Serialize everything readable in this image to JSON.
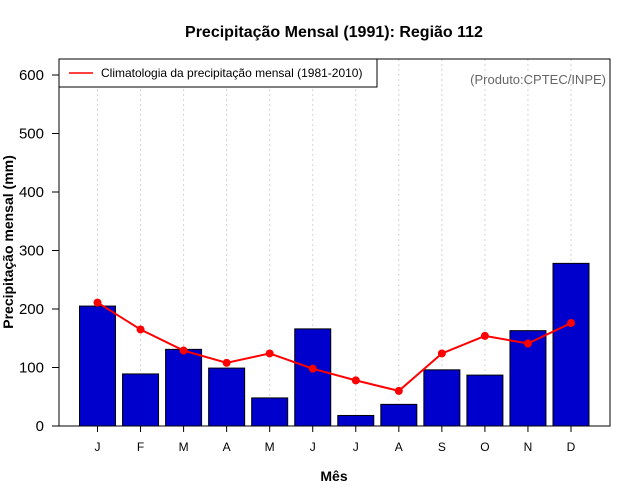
{
  "chart_data": {
    "type": "bar",
    "title": "Precipitação Mensal (1991): Região 112",
    "xlabel": "Mês",
    "ylabel": "Precipitação mensal (mm)",
    "ylim": [
      0,
      620
    ],
    "yticks": [
      0,
      100,
      200,
      300,
      400,
      500,
      600
    ],
    "categories": [
      "J",
      "F",
      "M",
      "A",
      "M",
      "J",
      "J",
      "A",
      "S",
      "O",
      "N",
      "D"
    ],
    "series": [
      {
        "name": "Precipitação mensal (1991)",
        "type": "bar",
        "color": "#0000cc",
        "values": [
          205,
          89,
          131,
          99,
          48,
          166,
          18,
          37,
          96,
          87,
          163,
          278
        ]
      },
      {
        "name": "Climatologia da precipitação mensal (1981-2010)",
        "type": "line",
        "color": "#ff0000",
        "values": [
          211,
          165,
          129,
          108,
          124,
          98,
          78,
          60,
          124,
          154,
          141,
          176
        ]
      }
    ],
    "legend_position": "top-left",
    "credit": "(Produto:CPTEC/INPE)",
    "grid": "vertical-dotted"
  }
}
